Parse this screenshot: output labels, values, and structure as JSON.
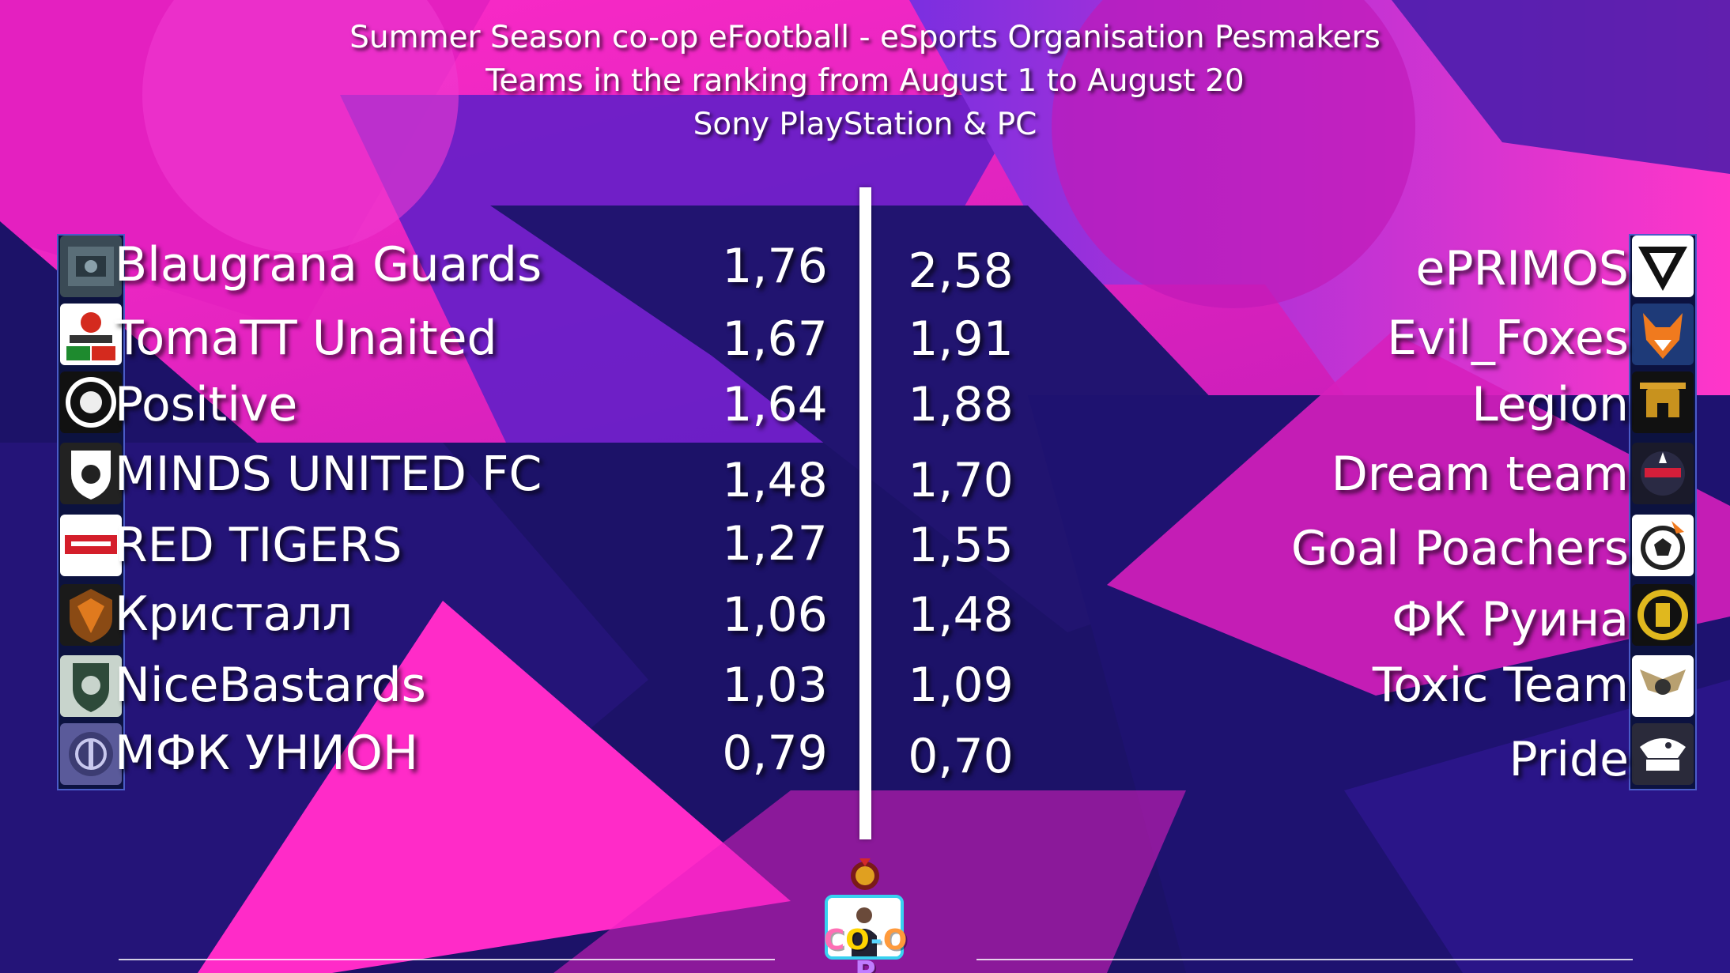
{
  "header": {
    "line1": "Summer Season co-op eFootball - eSports Organisation Pesmakers",
    "line2": "Teams in the ranking from August 1 to August 20",
    "line3": "Sony PlayStation & PC"
  },
  "colors": {
    "background_navy": "#1a1066",
    "background_magenta": "#ff1fc4",
    "background_purple": "#6a1fd0",
    "text": "#ffffff",
    "coop_cyan": "#38d2f0"
  },
  "left_teams": [
    {
      "name": "Blaugrana Guards",
      "score": "1,76",
      "badge_icon": "blaugrana-guards-crest-icon"
    },
    {
      "name": "TomaTT Unaited",
      "score": "1,67",
      "badge_icon": "tomatt-crest-icon"
    },
    {
      "name": "Positive",
      "score": "1,64",
      "badge_icon": "positive-crest-icon"
    },
    {
      "name": "MINDS UNITED FC",
      "score": "1,48",
      "badge_icon": "minds-united-shield-icon"
    },
    {
      "name": "RED TIGERS",
      "score": "1,27",
      "badge_icon": "red-tigers-logo-icon"
    },
    {
      "name": "Кристалл",
      "score": "1,06",
      "badge_icon": "kristall-crest-icon"
    },
    {
      "name": "NiceBastards",
      "score": "1,03",
      "badge_icon": "nicebastards-crest-icon"
    },
    {
      "name": "МФК УНИОН",
      "score": "0,79",
      "badge_icon": "mfk-union-crest-icon"
    }
  ],
  "right_teams": [
    {
      "name": "ePRIMOS",
      "score": "2,58",
      "badge_icon": "eprimos-logo-icon"
    },
    {
      "name": "Evil_Foxes",
      "score": "1,91",
      "badge_icon": "fox-logo-icon"
    },
    {
      "name": "Legion",
      "score": "1,88",
      "badge_icon": "legion-helmet-icon"
    },
    {
      "name": "Dream team",
      "score": "1,70",
      "badge_icon": "dream-team-logo-icon"
    },
    {
      "name": "Goal Poachers",
      "score": "1,55",
      "badge_icon": "goal-poachers-ball-icon"
    },
    {
      "name": "ФК Руина",
      "score": "1,48",
      "badge_icon": "fk-ruina-crest-icon"
    },
    {
      "name": "Toxic Team",
      "score": "1,09",
      "badge_icon": "toxic-team-wings-icon"
    },
    {
      "name": "Pride",
      "score": "0,70",
      "badge_icon": "pride-eagle-icon"
    }
  ],
  "footer": {
    "coop_label": "CO-OP",
    "coop_letters": [
      "C",
      "O",
      "-",
      "O",
      "P"
    ],
    "coop_letter_colors": [
      "#ff6fb5",
      "#ffd400",
      "#5ad6ff",
      "#ff9a3c",
      "#c07cff"
    ],
    "coop_icon": "coop-player-logo-icon",
    "org_icon": "pesmakers-emblem-icon"
  }
}
